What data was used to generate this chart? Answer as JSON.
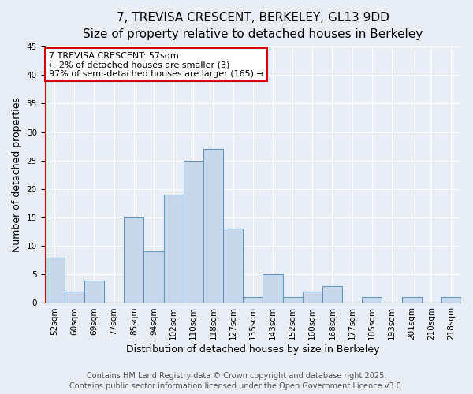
{
  "title_line1": "7, TREVISA CRESCENT, BERKELEY, GL13 9DD",
  "title_line2": "Size of property relative to detached houses in Berkeley",
  "xlabel": "Distribution of detached houses by size in Berkeley",
  "ylabel": "Number of detached properties",
  "categories": [
    "52sqm",
    "60sqm",
    "69sqm",
    "77sqm",
    "85sqm",
    "94sqm",
    "102sqm",
    "110sqm",
    "118sqm",
    "127sqm",
    "135sqm",
    "143sqm",
    "152sqm",
    "160sqm",
    "168sqm",
    "177sqm",
    "185sqm",
    "193sqm",
    "201sqm",
    "210sqm",
    "218sqm"
  ],
  "values": [
    8,
    2,
    4,
    0,
    15,
    9,
    19,
    25,
    27,
    13,
    1,
    5,
    1,
    2,
    3,
    0,
    1,
    0,
    1,
    0,
    1
  ],
  "bar_color": "#c8d8ec",
  "bar_edge_color": "#6699bb",
  "ylim": [
    0,
    45
  ],
  "yticks": [
    0,
    5,
    10,
    15,
    20,
    25,
    30,
    35,
    40,
    45
  ],
  "annotation_title": "7 TREVISA CRESCENT: 57sqm",
  "annotation_line2": "← 2% of detached houses are smaller (3)",
  "annotation_line3": "97% of semi-detached houses are larger (165) →",
  "annotation_box_color": "white",
  "annotation_box_edge_color": "#cc0000",
  "red_line_color": "#cc0000",
  "footer_line1": "Contains HM Land Registry data © Crown copyright and database right 2025.",
  "footer_line2": "Contains public sector information licensed under the Open Government Licence v3.0.",
  "background_color": "#e8eef8",
  "grid_color": "#ffffff",
  "title_fontsize": 11,
  "subtitle_fontsize": 9.5,
  "axis_label_fontsize": 9,
  "tick_fontsize": 7.5,
  "annotation_fontsize": 8,
  "footer_fontsize": 7
}
